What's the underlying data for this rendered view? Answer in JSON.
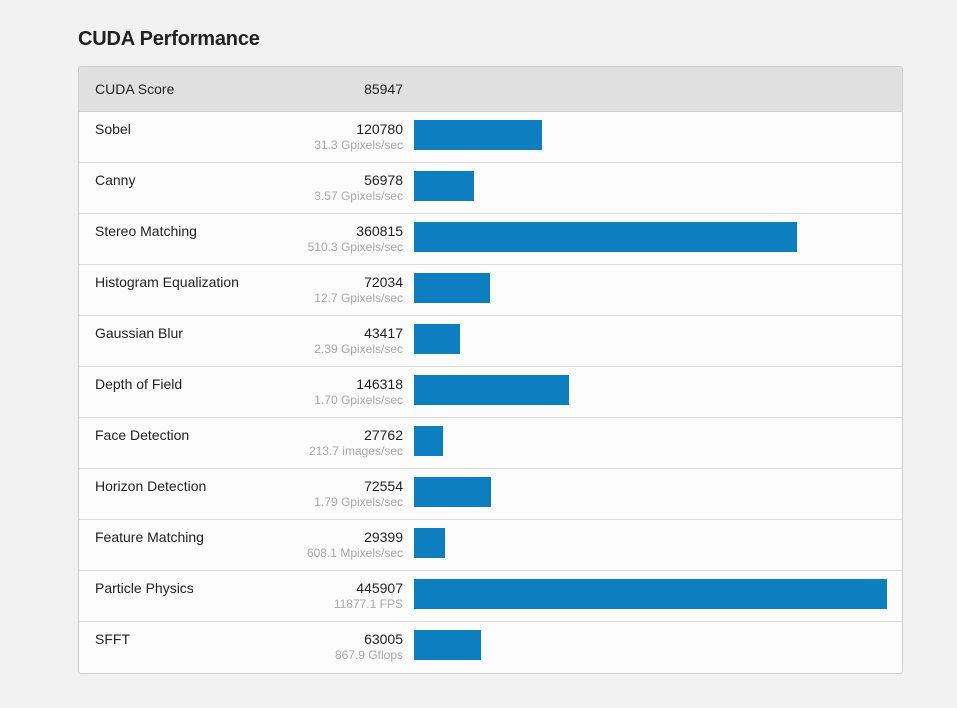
{
  "page": {
    "title": "CUDA Performance"
  },
  "summary": {
    "label": "CUDA Score",
    "score": "85947"
  },
  "bar_max": 445907,
  "colors": {
    "bar": "#0d7ec0",
    "header_bg": "#e0e0e0",
    "rate_text": "#a8a8a8"
  },
  "rows": [
    {
      "label": "Sobel",
      "score": "120780",
      "value": 120780,
      "rate": "31.3 Gpixels/sec"
    },
    {
      "label": "Canny",
      "score": "56978",
      "value": 56978,
      "rate": "3.57 Gpixels/sec"
    },
    {
      "label": "Stereo Matching",
      "score": "360815",
      "value": 360815,
      "rate": "510.3 Gpixels/sec"
    },
    {
      "label": "Histogram Equalization",
      "score": "72034",
      "value": 72034,
      "rate": "12.7 Gpixels/sec"
    },
    {
      "label": "Gaussian Blur",
      "score": "43417",
      "value": 43417,
      "rate": "2.39 Gpixels/sec"
    },
    {
      "label": "Depth of Field",
      "score": "146318",
      "value": 146318,
      "rate": "1.70 Gpixels/sec"
    },
    {
      "label": "Face Detection",
      "score": "27762",
      "value": 27762,
      "rate": "213.7 images/sec"
    },
    {
      "label": "Horizon Detection",
      "score": "72554",
      "value": 72554,
      "rate": "1.79 Gpixels/sec"
    },
    {
      "label": "Feature Matching",
      "score": "29399",
      "value": 29399,
      "rate": "608.1 Mpixels/sec"
    },
    {
      "label": "Particle Physics",
      "score": "445907",
      "value": 445907,
      "rate": "11877.1 FPS"
    },
    {
      "label": "SFFT",
      "score": "63005",
      "value": 63005,
      "rate": "867.9 Gflops"
    }
  ]
}
